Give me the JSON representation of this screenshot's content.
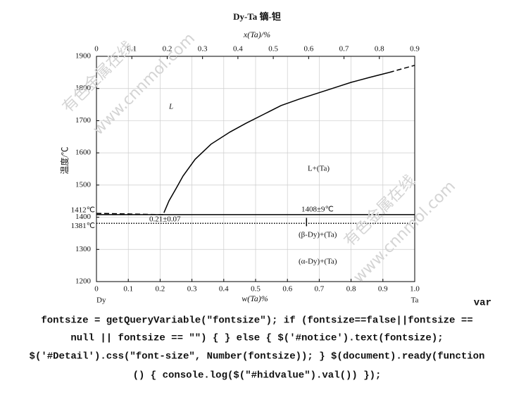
{
  "chart_data": {
    "type": "line",
    "title": "Dy-Ta  镝-钽",
    "xlabel": "w(Ta)%",
    "x2label": "x(Ta)/%",
    "ylabel": "温度/℃",
    "xlim": [
      0,
      1.0
    ],
    "xticks": [
      0,
      0.1,
      0.2,
      0.3,
      0.4,
      0.5,
      0.6,
      0.7,
      0.8,
      0.9,
      {
        "value": 1.0,
        "label": "1.0"
      }
    ],
    "x2lim": [
      0,
      0.9
    ],
    "x2ticks": [
      0,
      0.1,
      0.2,
      0.3,
      0.4,
      0.5,
      0.6,
      0.7,
      0.8,
      0.9
    ],
    "ylim": [
      1200,
      1900
    ],
    "yticks": [
      1200,
      1300,
      1400,
      1500,
      1600,
      1700,
      1800,
      1900
    ],
    "side_labels": [
      {
        "value": 1412,
        "label": "1412℃"
      },
      {
        "value": 1381,
        "label": "1381℃"
      }
    ],
    "end_labels": [
      "Dy",
      "Ta"
    ],
    "grid": true,
    "color": "#000000",
    "series": [
      {
        "style": "solid",
        "x": [
          0.212,
          0.228,
          0.25,
          0.272,
          0.31,
          0.36,
          0.42,
          0.47,
          0.53,
          0.58,
          0.64,
          0.69,
          0.75,
          0.8,
          0.86,
          0.92
        ],
        "values": [
          1414,
          1451,
          1489,
          1528,
          1580,
          1627,
          1665,
          1692,
          1722,
          1747,
          1768,
          1784,
          1803,
          1819,
          1835,
          1850
        ]
      },
      {
        "style": "dashed",
        "x": [
          0.92,
          1.0
        ],
        "values": [
          1850,
          1872
        ]
      },
      {
        "style": "dashed",
        "x": [
          0,
          0.21
        ],
        "values": [
          1412,
          1408
        ]
      },
      {
        "style": "solid",
        "x": [
          0,
          1.0
        ],
        "values": [
          1408,
          1408
        ]
      },
      {
        "style": "dotted",
        "x": [
          0,
          1.0
        ],
        "values": [
          1381,
          1381
        ]
      },
      {
        "style": "solid",
        "x": [
          0.66,
          0.66
        ],
        "values": [
          1398,
          1372
        ]
      }
    ],
    "annotations": [
      "L",
      "L+(Ta)",
      "1408±9℃",
      "0.21±0.07",
      "(β-Dy)+(Ta)",
      "(α-Dy)+(Ta)"
    ],
    "watermarks": [
      "有色金属在线",
      "www.cnnmol.com",
      "有色金属在线",
      "www.cnnmol.com"
    ]
  },
  "code_lines": [
    "var",
    "fontsize = getQueryVariable(\"fontsize\"); if (fontsize==false||fontsize ==",
    "null || fontsize == \"\") { } else { $('#notice').text(fontsize);",
    "$('#Detail').css(\"font-size\", Number(fontsize)); } $(document).ready(function",
    "() { console.log($(\"#hidvalue\").val()) });"
  ]
}
